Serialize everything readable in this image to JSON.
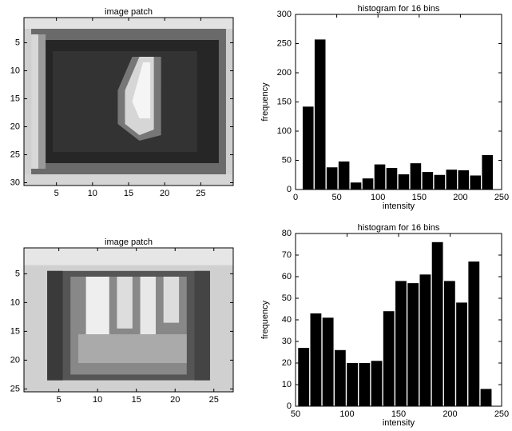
{
  "chart_data": [
    {
      "type": "image",
      "title": "image patch",
      "xlim": [
        0.5,
        29.5
      ],
      "ylim": [
        0.5,
        30.5
      ],
      "xticks": [
        5,
        10,
        15,
        20,
        25
      ],
      "yticks": [
        5,
        10,
        15,
        20,
        25,
        30
      ]
    },
    {
      "type": "histogram",
      "title": "histogram for 16 bins",
      "x_label": "intensity",
      "y_label": "frequency",
      "color": "#000000",
      "bins": [
        8,
        22.5,
        37,
        51.5,
        66,
        80.5,
        95,
        109.5,
        124,
        138.5,
        153,
        167.5,
        182,
        196.5,
        211,
        225.5,
        240
      ],
      "values": [
        142,
        257,
        38,
        48,
        12,
        19,
        43,
        37,
        26,
        45,
        30,
        25,
        34,
        33,
        24,
        59
      ],
      "xlim": [
        0,
        250
      ],
      "xticks": [
        0,
        50,
        100,
        150,
        200,
        250
      ],
      "ylim": [
        0,
        300
      ],
      "yticks": [
        0,
        50,
        100,
        150,
        200,
        250,
        300
      ]
    },
    {
      "type": "image",
      "title": "image patch",
      "xlim": [
        0.5,
        27.5
      ],
      "ylim": [
        0.5,
        25.5
      ],
      "xticks": [
        5,
        10,
        15,
        20,
        25
      ],
      "yticks": [
        5,
        10,
        15,
        20,
        25
      ]
    },
    {
      "type": "histogram",
      "title": "histogram for 16 bins",
      "x_label": "intensity",
      "y_label": "frequency",
      "color": "#000000",
      "bins": [
        52,
        63.8,
        75.6,
        87.4,
        99.2,
        111,
        122.8,
        134.6,
        146.4,
        158.2,
        170,
        181.8,
        193.6,
        205.4,
        217.2,
        229,
        240.8
      ],
      "values": [
        27,
        43,
        41,
        26,
        20,
        20,
        21,
        44,
        58,
        57,
        61,
        76,
        58,
        48,
        67,
        8
      ],
      "xlim": [
        50,
        250
      ],
      "xticks": [
        50,
        100,
        150,
        200,
        250
      ],
      "ylim": [
        0,
        80
      ],
      "yticks": [
        0,
        10,
        20,
        30,
        40,
        50,
        60,
        70,
        80
      ]
    }
  ]
}
